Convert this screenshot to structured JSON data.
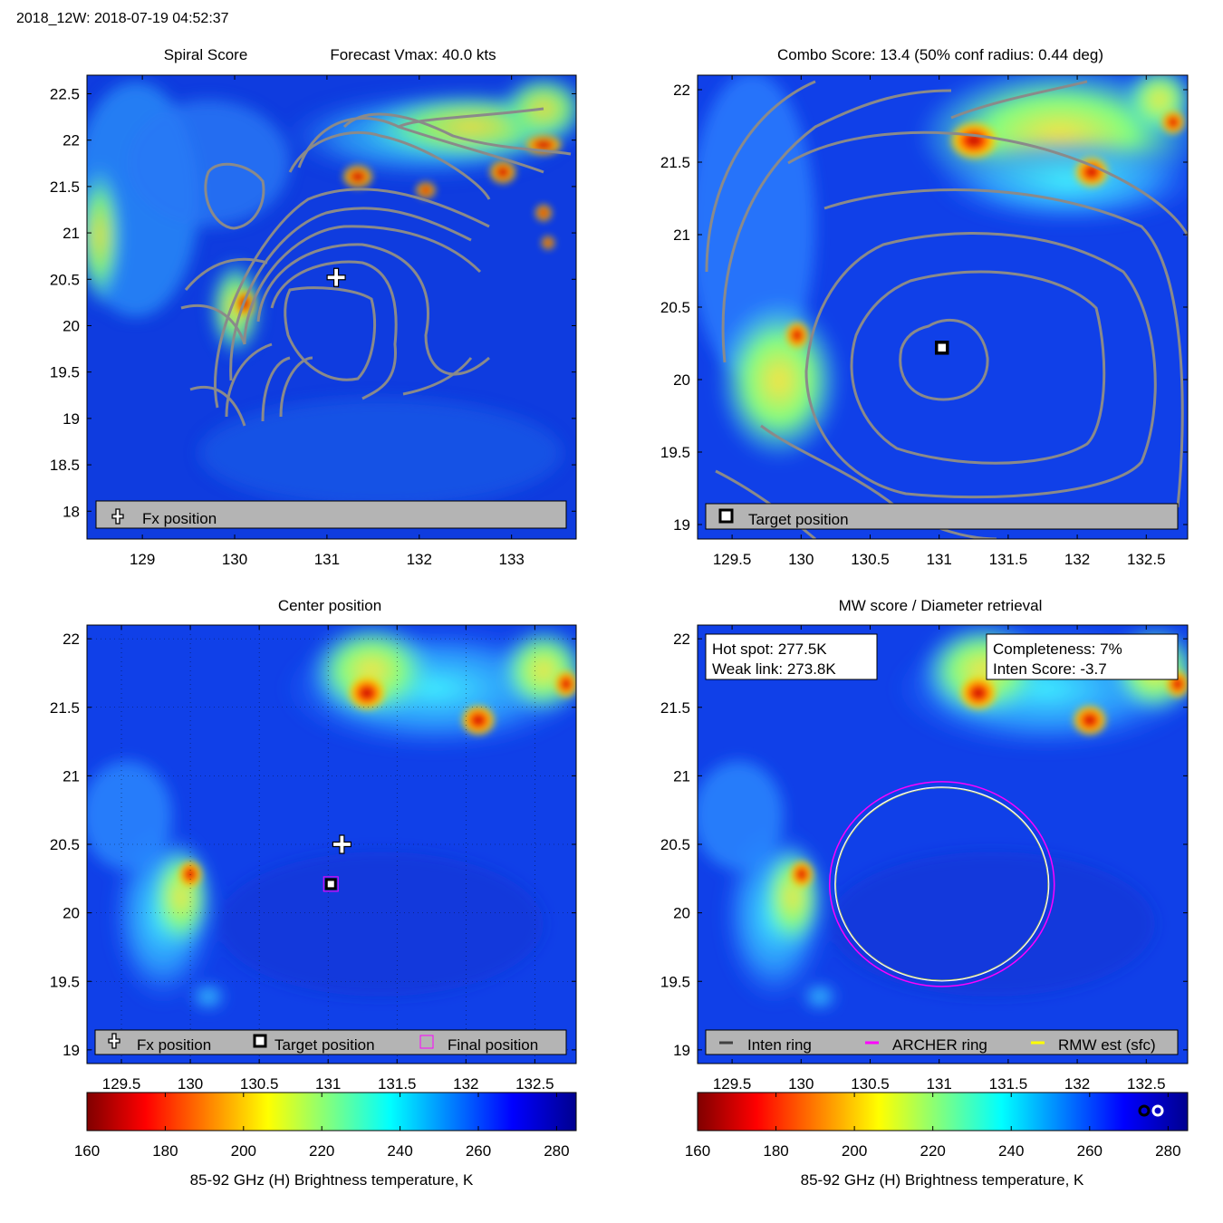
{
  "header": {
    "title": "2018_12W: 2018-07-19 04:52:37"
  },
  "colors": {
    "legend_bg": "#b4b4b4",
    "contour": "#8a8a8a",
    "ring_inten": "#404040",
    "ring_archer": "#ff00ff",
    "ring_rmw": "#ffff00"
  },
  "chart_data": [
    {
      "id": "spiral",
      "type": "heatmap",
      "title_left": "Spiral Score",
      "title_right": "Forecast Vmax: 40.0 kts",
      "xlim": [
        128.4,
        133.7
      ],
      "ylim": [
        17.7,
        22.7
      ],
      "xticks": [
        129,
        130,
        131,
        132,
        133
      ],
      "yticks": [
        18,
        18.5,
        19,
        19.5,
        20,
        20.5,
        21,
        21.5,
        22,
        22.5
      ],
      "fx_position": {
        "lon": 131.1,
        "lat": 20.52
      },
      "legend": [
        {
          "marker": "cross",
          "label": "Fx position"
        }
      ]
    },
    {
      "id": "combo",
      "type": "heatmap",
      "title": "Combo Score: 13.4  (50% conf radius: 0.44 deg)",
      "xlim": [
        129.25,
        132.8
      ],
      "ylim": [
        18.9,
        22.1
      ],
      "xticks": [
        129.5,
        130,
        130.5,
        131,
        131.5,
        132,
        132.5
      ],
      "yticks": [
        19,
        19.5,
        20,
        20.5,
        21,
        21.5,
        22
      ],
      "target_position": {
        "lon": 131.02,
        "lat": 20.22
      },
      "legend": [
        {
          "marker": "square",
          "label": "Target position"
        }
      ]
    },
    {
      "id": "center",
      "type": "heatmap",
      "title": "Center position",
      "xlim": [
        129.25,
        132.8
      ],
      "ylim": [
        18.9,
        22.1
      ],
      "xticks": [
        129.5,
        130,
        130.5,
        131,
        131.5,
        132,
        132.5
      ],
      "yticks": [
        19,
        19.5,
        20,
        20.5,
        21,
        21.5,
        22
      ],
      "grid": true,
      "fx_position": {
        "lon": 131.1,
        "lat": 20.5
      },
      "target_position": {
        "lon": 131.02,
        "lat": 20.21
      },
      "final_position": {
        "lon": 131.02,
        "lat": 20.21
      },
      "legend": [
        {
          "marker": "cross",
          "label": "Fx position"
        },
        {
          "marker": "square",
          "label": "Target position"
        },
        {
          "marker": "magenta-square",
          "label": "Final position"
        }
      ]
    },
    {
      "id": "mw",
      "type": "heatmap",
      "title": "MW score / Diameter retrieval",
      "xlim": [
        129.25,
        132.8
      ],
      "ylim": [
        18.9,
        22.1
      ],
      "xticks": [
        129.5,
        130,
        130.5,
        131,
        131.5,
        132,
        132.5
      ],
      "yticks": [
        19,
        19.5,
        20,
        20.5,
        21,
        21.5,
        22
      ],
      "info_left": [
        "Hot spot: 277.5K",
        "Weak link: 273.8K"
      ],
      "info_right": [
        "Completeness: 7%",
        "Inten Score: -3.7"
      ],
      "ring_center": {
        "lon": 131.02,
        "lat": 20.21
      },
      "legend": [
        {
          "marker": "line-dark",
          "label": "Inten ring"
        },
        {
          "marker": "line-magenta",
          "label": "ARCHER ring"
        },
        {
          "marker": "line-yellow",
          "label": "RMW est (sfc)"
        }
      ]
    },
    {
      "id": "colorbar",
      "type": "colorbar",
      "range": [
        160,
        285
      ],
      "ticks": [
        160,
        180,
        200,
        220,
        240,
        260,
        280
      ],
      "label": "85-92 GHz (H) Brightness temperature, K"
    }
  ]
}
